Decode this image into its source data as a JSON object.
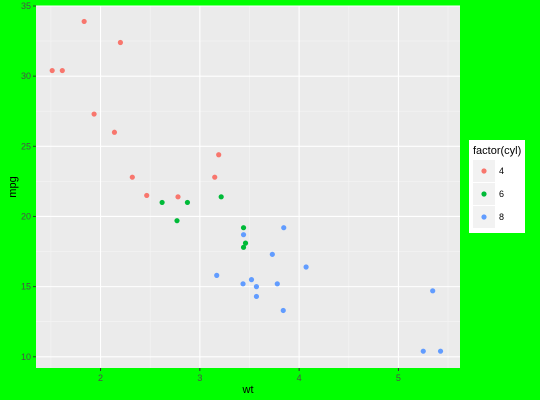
{
  "chart_data": {
    "type": "scatter",
    "xlabel": "wt",
    "ylabel": "mpg",
    "xlim": [
      1.35,
      5.62
    ],
    "ylim": [
      9.2,
      35.0
    ],
    "x_ticks": [
      2,
      3,
      4,
      5
    ],
    "y_ticks": [
      10,
      15,
      20,
      25,
      30,
      35
    ],
    "x_tick_labels": [
      "2",
      "3",
      "4",
      "5"
    ],
    "y_tick_labels": [
      "10",
      "15",
      "20",
      "25",
      "30",
      "35"
    ],
    "grid": true,
    "legend": {
      "title": "factor(cyl)",
      "position": "right"
    },
    "series": [
      {
        "name": "4",
        "color": "#F8766D",
        "points": [
          [
            1.513,
            30.4
          ],
          [
            1.615,
            30.4
          ],
          [
            1.835,
            33.9
          ],
          [
            1.935,
            27.3
          ],
          [
            2.14,
            26.0
          ],
          [
            2.2,
            32.4
          ],
          [
            2.32,
            22.8
          ],
          [
            2.465,
            21.5
          ],
          [
            2.78,
            21.4
          ],
          [
            3.15,
            22.8
          ],
          [
            3.19,
            24.4
          ]
        ]
      },
      {
        "name": "6",
        "color": "#00BA38",
        "points": [
          [
            2.62,
            21.0
          ],
          [
            2.77,
            19.7
          ],
          [
            2.875,
            21.0
          ],
          [
            3.215,
            21.4
          ],
          [
            3.44,
            17.8
          ],
          [
            3.44,
            19.2
          ],
          [
            3.46,
            18.1
          ]
        ]
      },
      {
        "name": "8",
        "color": "#619CFF",
        "points": [
          [
            3.17,
            15.8
          ],
          [
            3.435,
            15.2
          ],
          [
            3.44,
            18.7
          ],
          [
            3.52,
            15.5
          ],
          [
            3.57,
            14.3
          ],
          [
            3.57,
            15.0
          ],
          [
            3.73,
            17.3
          ],
          [
            3.78,
            15.2
          ],
          [
            3.84,
            13.3
          ],
          [
            3.845,
            19.2
          ],
          [
            4.07,
            16.4
          ],
          [
            5.25,
            10.4
          ],
          [
            5.345,
            14.7
          ],
          [
            5.424,
            10.4
          ]
        ]
      }
    ]
  }
}
